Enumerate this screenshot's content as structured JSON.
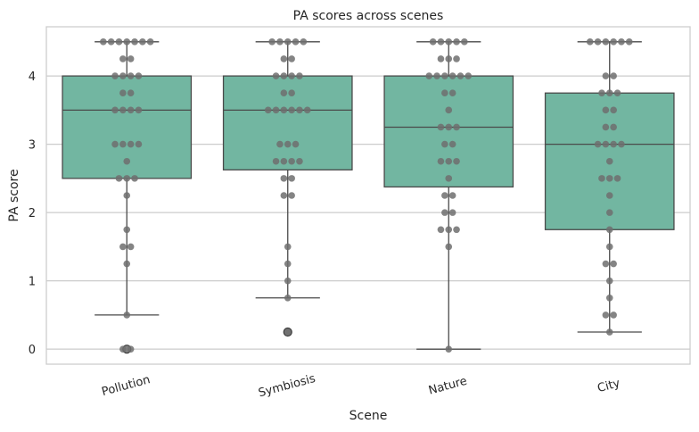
{
  "chart_data": {
    "type": "box",
    "title": "PA scores across scenes",
    "xlabel": "Scene",
    "ylabel": "PA score",
    "ylim": [
      -0.22,
      4.72
    ],
    "yticks": [
      0,
      1,
      2,
      3,
      4
    ],
    "grid": "horizontal",
    "box_color": "#72b6a1",
    "point_color": "#6e6e6e",
    "categories": [
      "Pollution",
      "Symbiosis",
      "Nature",
      "City"
    ],
    "boxes": [
      {
        "category": "Pollution",
        "q1": 2.5,
        "median": 3.5,
        "q3": 4.0,
        "whisker_low": 0.5,
        "whisker_high": 4.5,
        "outliers": [
          0
        ]
      },
      {
        "category": "Symbiosis",
        "q1": 2.625,
        "median": 3.5,
        "q3": 4.0,
        "whisker_low": 0.75,
        "whisker_high": 4.5,
        "outliers": [
          0.25
        ]
      },
      {
        "category": "Nature",
        "q1": 2.375,
        "median": 3.25,
        "q3": 4.0,
        "whisker_low": 0.0,
        "whisker_high": 4.5,
        "outliers": []
      },
      {
        "category": "City",
        "q1": 1.75,
        "median": 3.0,
        "q3": 3.75,
        "whisker_low": 0.25,
        "whisker_high": 4.5,
        "outliers": []
      }
    ],
    "points": [
      [
        4.5,
        4.5,
        4.5,
        4.5,
        4.5,
        4.5,
        4.5,
        4.25,
        4.25,
        4.0,
        4.0,
        4.0,
        4.0,
        3.75,
        3.75,
        3.5,
        3.5,
        3.5,
        3.5,
        3.0,
        3.0,
        3.0,
        3.0,
        2.75,
        2.5,
        2.5,
        2.5,
        2.25,
        1.75,
        1.5,
        1.5,
        1.25,
        0.5,
        0,
        0
      ],
      [
        4.5,
        4.5,
        4.5,
        4.5,
        4.5,
        4.25,
        4.25,
        4.0,
        4.0,
        4.0,
        4.0,
        3.75,
        3.75,
        3.5,
        3.5,
        3.5,
        3.5,
        3.5,
        3.5,
        3.0,
        3.0,
        3.0,
        2.75,
        2.75,
        2.75,
        2.75,
        2.5,
        2.5,
        2.25,
        2.25,
        1.5,
        1.25,
        1.0,
        0.75,
        0.25
      ],
      [
        4.5,
        4.5,
        4.5,
        4.5,
        4.5,
        4.25,
        4.25,
        4.25,
        4.0,
        4.0,
        4.0,
        4.0,
        4.0,
        4.0,
        3.75,
        3.75,
        3.5,
        3.25,
        3.25,
        3.25,
        3.0,
        3.0,
        2.75,
        2.75,
        2.75,
        2.5,
        2.25,
        2.25,
        2.0,
        2.0,
        1.75,
        1.75,
        1.75,
        1.5,
        0.0
      ],
      [
        4.5,
        4.5,
        4.5,
        4.5,
        4.5,
        4.5,
        4.0,
        4.0,
        3.75,
        3.75,
        3.75,
        3.5,
        3.5,
        3.25,
        3.25,
        3.0,
        3.0,
        3.0,
        3.0,
        2.75,
        2.5,
        2.5,
        2.5,
        2.25,
        2.0,
        1.75,
        1.5,
        1.25,
        1.25,
        1.0,
        0.75,
        0.5,
        0.5,
        0.25
      ]
    ]
  }
}
